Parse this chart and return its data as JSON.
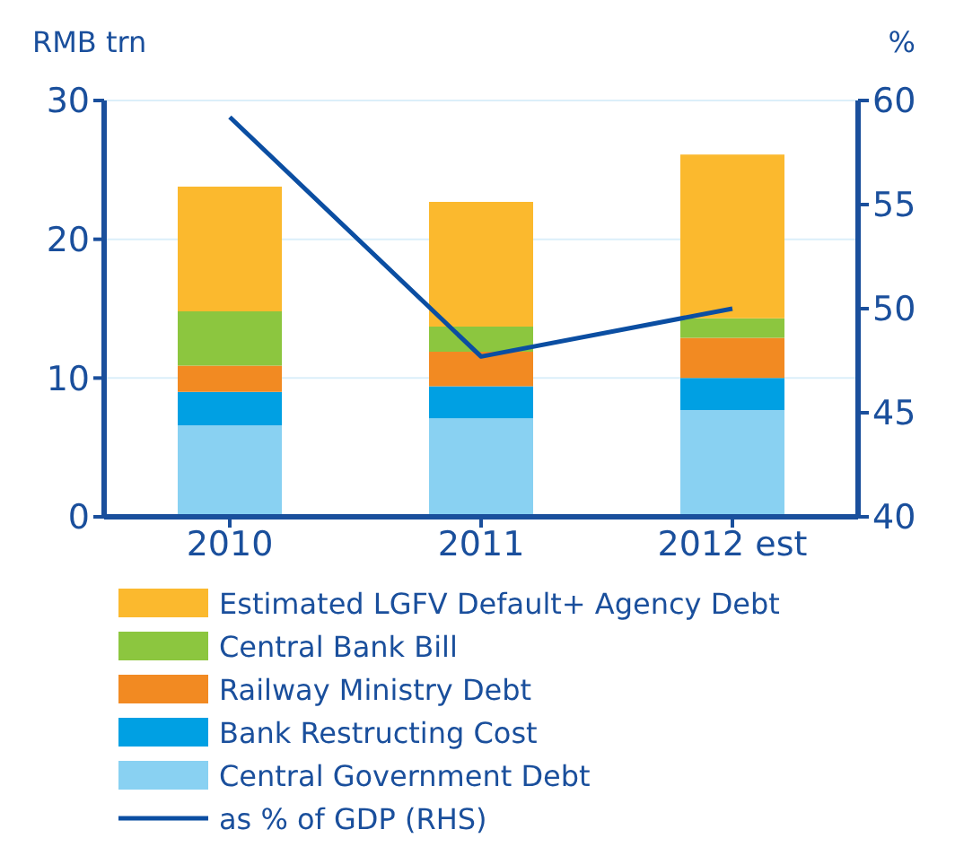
{
  "chart_data": {
    "type": "bar",
    "stacked": true,
    "ylabel": "RMB trn",
    "y2label": "%",
    "categories": [
      "2010",
      "2011",
      "2012 est"
    ],
    "series": [
      {
        "name": "Central Government Debt",
        "color": "#89d1f2",
        "values": [
          6.6,
          7.1,
          7.7
        ]
      },
      {
        "name": "Bank Restructing Cost",
        "color": "#00a0e3",
        "values": [
          2.4,
          2.3,
          2.3
        ]
      },
      {
        "name": "Railway Ministry Debt",
        "color": "#f28a22",
        "values": [
          1.9,
          2.5,
          2.9
        ]
      },
      {
        "name": "Central Bank Bill",
        "color": "#8cc63f",
        "values": [
          3.9,
          1.8,
          1.4
        ]
      },
      {
        "name": "Estimated LGFV Default+ Agency Debt",
        "color": "#fbb92e",
        "values": [
          9.0,
          9.0,
          11.8
        ]
      },
      {
        "name": "as % of GDP (RHS)",
        "type": "line",
        "axis": "y2",
        "color": "#0b4ea2",
        "values": [
          59.2,
          47.7,
          50.0
        ]
      }
    ],
    "ylim": [
      0,
      30
    ],
    "yticks": [
      0,
      10,
      20,
      30
    ],
    "y2lim": [
      40,
      60
    ],
    "y2ticks": [
      40,
      45,
      50,
      55,
      60
    ],
    "grid": "y",
    "legend": "bottom",
    "marker": "none"
  }
}
